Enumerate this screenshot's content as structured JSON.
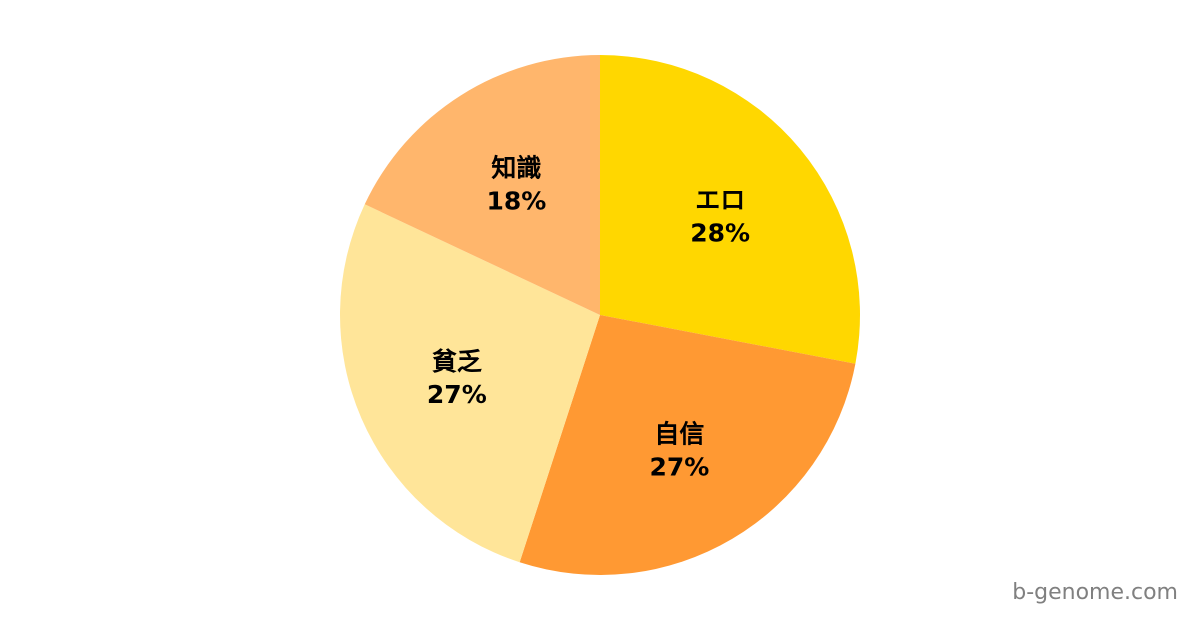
{
  "chart_data": {
    "type": "pie",
    "start": "top",
    "direction": "clockwise",
    "slices": [
      {
        "label": "エロ",
        "value": 28,
        "display": "28%",
        "color": "#FFD700"
      },
      {
        "label": "自信",
        "value": 27,
        "display": "27%",
        "color": "#FF9933"
      },
      {
        "label": "貧乏",
        "value": 27,
        "display": "27%",
        "color": "#FFE599"
      },
      {
        "label": "知識",
        "value": 18,
        "display": "18%",
        "color": "#FFB66C"
      }
    ]
  },
  "watermark": "b-genome.com"
}
